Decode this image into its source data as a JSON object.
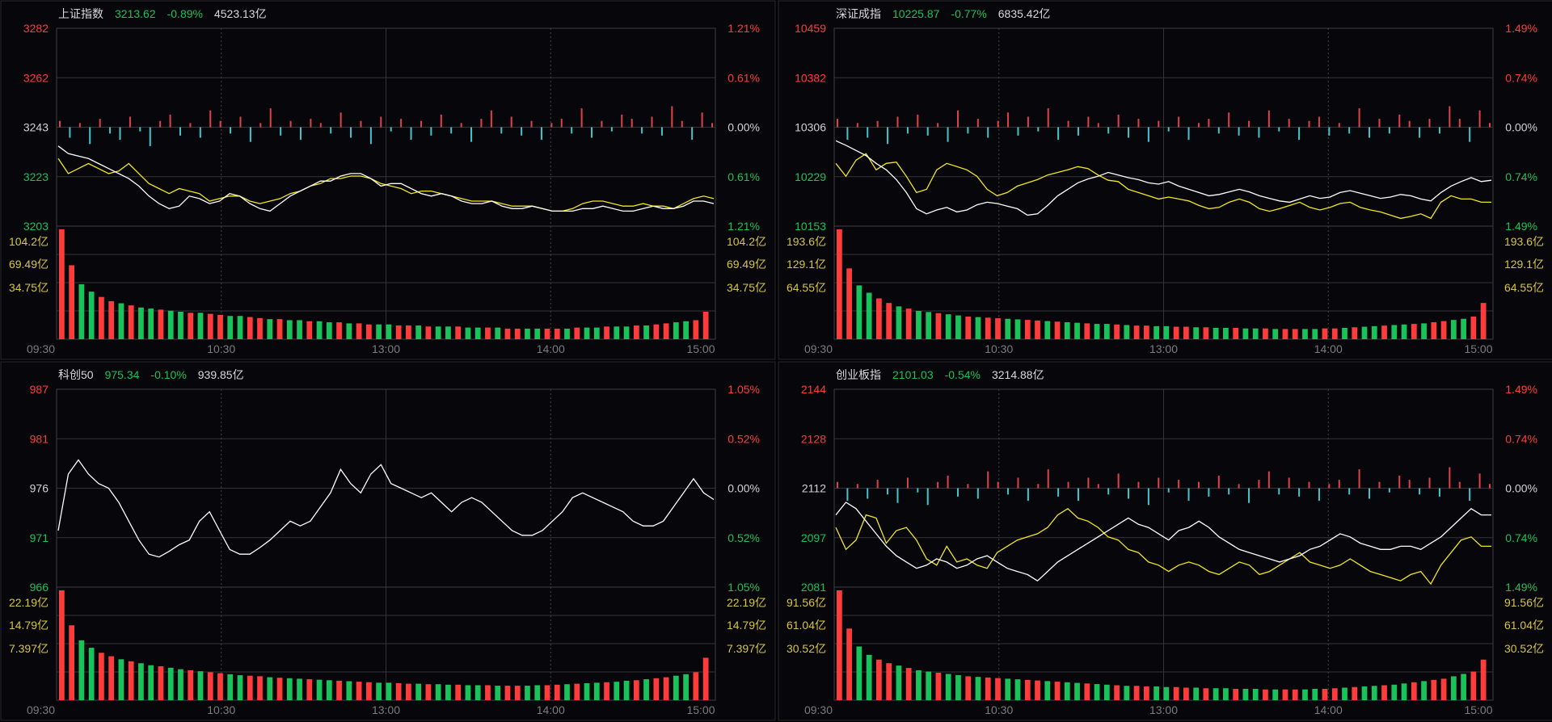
{
  "colors": {
    "up": "#ff3b3b",
    "down": "#19c25a",
    "neutral": "#d2d2d2",
    "vol_label": "#d8c440",
    "index_line": "#ffffff",
    "avg_line": "#f2e620",
    "breadth_up": "#e0404a",
    "breadth_down": "#3fc6cc"
  },
  "panels": [
    {
      "name": "上证指数",
      "price": "3213.62",
      "change": "-0.89%",
      "turnover": "4523.13亿",
      "has_avg_line": true,
      "has_breadth": true,
      "price_ticks": [
        {
          "label": "3282",
          "tone": "up"
        },
        {
          "label": "3262",
          "tone": "up"
        },
        {
          "label": "3243",
          "tone": "neutral"
        },
        {
          "label": "3223",
          "tone": "down"
        },
        {
          "label": "3203",
          "tone": "down"
        }
      ],
      "pct_ticks": [
        {
          "label": "1.21%",
          "tone": "up"
        },
        {
          "label": "0.61%",
          "tone": "up"
        },
        {
          "label": "0.00%",
          "tone": "neutral"
        },
        {
          "label": "0.61%",
          "tone": "down"
        },
        {
          "label": "1.21%",
          "tone": "down"
        }
      ],
      "volume_ticks": [
        "104.2亿",
        "69.49亿",
        "34.75亿"
      ],
      "time_labels": [
        "09:30",
        "10:30",
        "13:00",
        "14:00",
        "15:00"
      ],
      "ylim": [
        3203,
        3282
      ],
      "index_line": [
        3235,
        3232,
        3231,
        3230,
        3228,
        3226,
        3224,
        3222,
        3219,
        3215,
        3212,
        3210,
        3211,
        3215,
        3214,
        3212,
        3213,
        3216,
        3215,
        3212,
        3210,
        3209,
        3212,
        3215,
        3217,
        3219,
        3221,
        3221,
        3223,
        3224,
        3224,
        3222,
        3219,
        3220,
        3220,
        3218,
        3216,
        3215,
        3216,
        3215,
        3213,
        3212,
        3212,
        3213,
        3211,
        3210,
        3210,
        3211,
        3210,
        3209,
        3209,
        3209,
        3210,
        3210,
        3211,
        3210,
        3209,
        3209,
        3210,
        3211,
        3210,
        3210,
        3211,
        3213,
        3213,
        3212
      ],
      "avg_line": [
        3230,
        3224,
        3226,
        3228,
        3226,
        3224,
        3225,
        3228,
        3224,
        3220,
        3218,
        3216,
        3218,
        3217,
        3216,
        3213,
        3214,
        3215,
        3215,
        3213,
        3212,
        3213,
        3214,
        3216,
        3217,
        3219,
        3220,
        3222,
        3222,
        3223,
        3223,
        3222,
        3220,
        3219,
        3218,
        3216,
        3217,
        3217,
        3216,
        3215,
        3214,
        3213,
        3213,
        3213,
        3212,
        3211,
        3211,
        3211,
        3210,
        3209,
        3209,
        3210,
        3212,
        3213,
        3213,
        3212,
        3211,
        3211,
        3212,
        3211,
        3211,
        3210,
        3212,
        3214,
        3215,
        3214
      ],
      "breadth": [
        0.3,
        -0.5,
        0.2,
        -0.8,
        0.4,
        -0.3,
        -0.6,
        0.5,
        -0.2,
        -0.9,
        0.3,
        0.6,
        -0.4,
        0.2,
        -0.5,
        0.8,
        0.3,
        -0.3,
        0.5,
        -0.7,
        0.2,
        0.9,
        -0.4,
        0.3,
        -0.6,
        0.4,
        0.2,
        -0.3,
        0.7,
        -0.5,
        0.3,
        -0.8,
        0.5,
        -0.2,
        0.4,
        -0.6,
        0.3,
        -0.4,
        0.6,
        -0.3,
        0.2,
        -0.7,
        0.4,
        0.8,
        -0.3,
        0.5,
        -0.4,
        0.3,
        -0.6,
        0.2,
        0.4,
        -0.3,
        0.9,
        -0.5,
        0.3,
        -0.2,
        0.6,
        0.4,
        -0.3,
        0.5,
        -0.4,
        1.0,
        0.3,
        -0.6,
        0.7,
        0.2
      ],
      "volume": [
        104,
        70,
        52,
        45,
        40,
        36,
        34,
        32,
        30,
        29,
        28,
        27,
        26,
        25,
        25,
        24,
        23,
        22,
        22,
        21,
        20,
        19,
        19,
        18,
        18,
        17,
        17,
        16,
        16,
        15,
        15,
        14,
        14,
        14,
        13,
        13,
        13,
        12,
        12,
        12,
        12,
        11,
        11,
        11,
        11,
        10,
        10,
        10,
        10,
        10,
        10,
        10,
        11,
        11,
        11,
        12,
        12,
        12,
        13,
        13,
        14,
        15,
        16,
        17,
        18,
        26
      ]
    },
    {
      "name": "深证成指",
      "price": "10225.87",
      "change": "-0.77%",
      "turnover": "6835.42亿",
      "has_avg_line": true,
      "has_breadth": true,
      "price_ticks": [
        {
          "label": "10459",
          "tone": "up"
        },
        {
          "label": "10382",
          "tone": "up"
        },
        {
          "label": "10306",
          "tone": "neutral"
        },
        {
          "label": "10229",
          "tone": "down"
        },
        {
          "label": "10153",
          "tone": "down"
        }
      ],
      "pct_ticks": [
        {
          "label": "1.49%",
          "tone": "up"
        },
        {
          "label": "0.74%",
          "tone": "up"
        },
        {
          "label": "0.00%",
          "tone": "neutral"
        },
        {
          "label": "0.74%",
          "tone": "down"
        },
        {
          "label": "1.49%",
          "tone": "down"
        }
      ],
      "volume_ticks": [
        "193.6亿",
        "129.1亿",
        "64.55亿"
      ],
      "time_labels": [
        "09:30",
        "10:30",
        "13:00",
        "14:00",
        "15:00"
      ],
      "ylim": [
        10153,
        10459
      ],
      "index_line": [
        10285,
        10278,
        10270,
        10262,
        10250,
        10240,
        10225,
        10205,
        10180,
        10172,
        10178,
        10182,
        10175,
        10178,
        10186,
        10190,
        10188,
        10184,
        10180,
        10170,
        10172,
        10185,
        10200,
        10210,
        10220,
        10226,
        10230,
        10236,
        10232,
        10228,
        10225,
        10220,
        10218,
        10222,
        10215,
        10210,
        10205,
        10200,
        10202,
        10206,
        10210,
        10206,
        10200,
        10196,
        10192,
        10190,
        10195,
        10200,
        10196,
        10198,
        10205,
        10208,
        10204,
        10200,
        10196,
        10198,
        10202,
        10200,
        10195,
        10192,
        10205,
        10215,
        10222,
        10228,
        10222,
        10224
      ],
      "avg_line": [
        10250,
        10230,
        10255,
        10265,
        10240,
        10250,
        10252,
        10230,
        10205,
        10210,
        10240,
        10250,
        10245,
        10240,
        10230,
        10210,
        10200,
        10205,
        10215,
        10220,
        10225,
        10232,
        10236,
        10240,
        10245,
        10242,
        10232,
        10224,
        10222,
        10210,
        10205,
        10200,
        10195,
        10198,
        10195,
        10192,
        10185,
        10180,
        10182,
        10190,
        10195,
        10190,
        10180,
        10176,
        10180,
        10185,
        10190,
        10182,
        10178,
        10182,
        10188,
        10190,
        10182,
        10178,
        10175,
        10170,
        10165,
        10168,
        10172,
        10165,
        10190,
        10200,
        10195,
        10195,
        10190,
        10190
      ],
      "breadth": [
        0.4,
        -0.6,
        0.2,
        -0.5,
        0.3,
        -0.8,
        0.5,
        -0.3,
        0.6,
        -0.4,
        0.2,
        -0.7,
        0.8,
        -0.3,
        0.4,
        -0.5,
        0.3,
        0.7,
        -0.4,
        0.5,
        -0.2,
        0.9,
        -0.6,
        0.3,
        -0.4,
        0.5,
        0.2,
        -0.3,
        0.6,
        -0.5,
        0.4,
        -0.7,
        0.3,
        -0.2,
        0.5,
        -0.6,
        0.2,
        0.4,
        -0.3,
        0.7,
        -0.4,
        0.3,
        -0.5,
        0.8,
        -0.2,
        0.4,
        -0.6,
        0.3,
        0.5,
        -0.4,
        0.2,
        -0.3,
        0.9,
        -0.5,
        0.4,
        -0.3,
        0.6,
        0.3,
        -0.5,
        0.4,
        -0.3,
        1.0,
        0.4,
        -0.7,
        0.8,
        0.2
      ],
      "volume": [
        194,
        125,
        95,
        82,
        72,
        64,
        58,
        54,
        50,
        48,
        46,
        44,
        42,
        40,
        39,
        38,
        37,
        36,
        35,
        34,
        33,
        32,
        31,
        30,
        29,
        28,
        27,
        27,
        26,
        25,
        24,
        24,
        23,
        23,
        22,
        22,
        21,
        21,
        20,
        20,
        20,
        19,
        19,
        19,
        18,
        18,
        18,
        18,
        18,
        19,
        19,
        20,
        21,
        22,
        23,
        24,
        25,
        26,
        27,
        28,
        30,
        32,
        34,
        36,
        40,
        64
      ]
    },
    {
      "name": "科创50",
      "price": "975.34",
      "change": "-0.10%",
      "turnover": "939.85亿",
      "has_avg_line": false,
      "has_breadth": false,
      "price_ticks": [
        {
          "label": "987",
          "tone": "up"
        },
        {
          "label": "981",
          "tone": "up"
        },
        {
          "label": "976",
          "tone": "neutral"
        },
        {
          "label": "971",
          "tone": "down"
        },
        {
          "label": "966",
          "tone": "down"
        }
      ],
      "pct_ticks": [
        {
          "label": "1.05%",
          "tone": "up"
        },
        {
          "label": "0.52%",
          "tone": "up"
        },
        {
          "label": "0.00%",
          "tone": "neutral"
        },
        {
          "label": "0.52%",
          "tone": "down"
        },
        {
          "label": "1.05%",
          "tone": "down"
        }
      ],
      "volume_ticks": [
        "22.19亿",
        "14.79亿",
        "7.397亿"
      ],
      "time_labels": [
        "09:30",
        "10:30",
        "13:00",
        "14:00",
        "15:00"
      ],
      "ylim": [
        966,
        987
      ],
      "index_line": [
        972,
        978,
        979.5,
        978,
        977,
        976.5,
        975,
        973,
        971,
        969.5,
        969.2,
        969.8,
        970.5,
        971,
        973,
        974,
        972,
        970,
        969.5,
        969.5,
        970.2,
        971,
        972,
        973,
        972.5,
        973,
        974.5,
        976,
        978.5,
        977,
        976,
        978,
        979,
        977,
        976.5,
        976,
        975.5,
        976,
        975,
        974,
        975,
        975.5,
        975,
        974,
        973,
        972,
        971.5,
        971.5,
        972,
        973,
        974,
        975.5,
        976,
        975.5,
        975,
        974.5,
        974,
        973,
        972.5,
        972.5,
        973,
        974.5,
        976,
        977.5,
        976,
        975.3
      ],
      "avg_line": [],
      "breadth": [],
      "volume": [
        22,
        15,
        12,
        10.5,
        9.5,
        8.8,
        8.2,
        7.8,
        7.4,
        7,
        6.8,
        6.5,
        6.2,
        6,
        5.8,
        5.6,
        5.4,
        5.2,
        5,
        4.9,
        4.8,
        4.6,
        4.5,
        4.4,
        4.3,
        4.2,
        4.1,
        4,
        3.9,
        3.8,
        3.7,
        3.6,
        3.5,
        3.5,
        3.4,
        3.3,
        3.3,
        3.2,
        3.2,
        3.1,
        3.1,
        3,
        3,
        3,
        2.9,
        2.9,
        2.9,
        2.9,
        3,
        3,
        3.1,
        3.2,
        3.3,
        3.4,
        3.5,
        3.6,
        3.7,
        3.9,
        4,
        4.2,
        4.4,
        4.6,
        4.9,
        5.2,
        5.6,
        8.5
      ]
    },
    {
      "name": "创业板指",
      "price": "2101.03",
      "change": "-0.54%",
      "turnover": "3214.88亿",
      "has_avg_line": true,
      "has_breadth": true,
      "price_ticks": [
        {
          "label": "2144",
          "tone": "up"
        },
        {
          "label": "2128",
          "tone": "up"
        },
        {
          "label": "2112",
          "tone": "neutral"
        },
        {
          "label": "2097",
          "tone": "down"
        },
        {
          "label": "2081",
          "tone": "down"
        }
      ],
      "pct_ticks": [
        {
          "label": "1.49%",
          "tone": "up"
        },
        {
          "label": "0.74%",
          "tone": "up"
        },
        {
          "label": "0.00%",
          "tone": "neutral"
        },
        {
          "label": "0.74%",
          "tone": "down"
        },
        {
          "label": "1.49%",
          "tone": "down"
        }
      ],
      "volume_ticks": [
        "91.56亿",
        "61.04亿",
        "30.52亿"
      ],
      "time_labels": [
        "09:30",
        "10:30",
        "13:00",
        "14:00",
        "15:00"
      ],
      "ylim": [
        2081,
        2144
      ],
      "index_line": [
        2104,
        2108,
        2106,
        2102,
        2098,
        2094,
        2091,
        2089,
        2087,
        2088,
        2090,
        2089,
        2087,
        2088,
        2090,
        2091,
        2089,
        2087,
        2086,
        2085,
        2083,
        2086,
        2089,
        2091,
        2093,
        2095,
        2097,
        2099,
        2101,
        2103,
        2101,
        2100,
        2098,
        2096,
        2099,
        2100,
        2102,
        2100,
        2097,
        2095,
        2093,
        2092,
        2091,
        2090,
        2089,
        2090,
        2091,
        2093,
        2094,
        2096,
        2098,
        2097,
        2095,
        2094,
        2093,
        2093,
        2094,
        2094,
        2093,
        2095,
        2097,
        2100,
        2103,
        2106,
        2104,
        2104
      ],
      "avg_line": [
        2100,
        2093,
        2096,
        2104,
        2103,
        2095,
        2099,
        2100,
        2096,
        2090,
        2088,
        2094,
        2089,
        2090,
        2088,
        2087,
        2092,
        2094,
        2096,
        2097,
        2098,
        2100,
        2104,
        2106,
        2103,
        2102,
        2100,
        2097,
        2096,
        2093,
        2092,
        2089,
        2088,
        2086,
        2088,
        2089,
        2088,
        2086,
        2085,
        2087,
        2089,
        2088,
        2085,
        2086,
        2088,
        2090,
        2092,
        2089,
        2088,
        2087,
        2088,
        2090,
        2088,
        2086,
        2085,
        2084,
        2083,
        2085,
        2086,
        2082,
        2088,
        2092,
        2096,
        2097,
        2094,
        2094
      ],
      "breadth": [
        0.3,
        -0.6,
        0.2,
        -0.5,
        0.4,
        -0.3,
        -0.7,
        0.5,
        -0.2,
        -0.8,
        0.3,
        0.6,
        -0.4,
        0.2,
        -0.5,
        0.8,
        0.3,
        -0.3,
        0.5,
        -0.6,
        0.2,
        0.9,
        -0.4,
        0.3,
        -0.6,
        0.5,
        0.2,
        -0.3,
        0.7,
        -0.5,
        0.3,
        -0.8,
        0.5,
        -0.2,
        0.4,
        -0.6,
        0.3,
        -0.4,
        0.6,
        -0.3,
        0.2,
        -0.7,
        0.4,
        0.8,
        -0.3,
        0.5,
        -0.4,
        0.3,
        -0.6,
        0.2,
        0.4,
        -0.3,
        0.9,
        -0.5,
        0.3,
        -0.2,
        0.6,
        0.4,
        -0.3,
        0.5,
        -0.4,
        1.0,
        0.3,
        -0.6,
        0.7,
        0.2
      ],
      "volume": [
        92,
        60,
        45,
        38,
        34,
        31,
        29,
        27,
        25,
        24,
        23,
        22,
        21,
        20,
        19.5,
        19,
        18.5,
        18,
        17.5,
        17,
        16.5,
        16,
        15.5,
        15,
        14.5,
        14,
        13.5,
        13,
        12.5,
        12,
        12,
        11.5,
        11.5,
        11,
        11,
        10.5,
        10.5,
        10,
        10,
        10,
        9.5,
        9.5,
        9.5,
        9,
        9,
        9,
        9,
        9,
        9.5,
        9.5,
        10,
        10.5,
        11,
        11.5,
        12,
        12.5,
        13,
        14,
        15,
        16,
        17,
        18,
        20,
        22,
        24,
        34
      ]
    }
  ]
}
